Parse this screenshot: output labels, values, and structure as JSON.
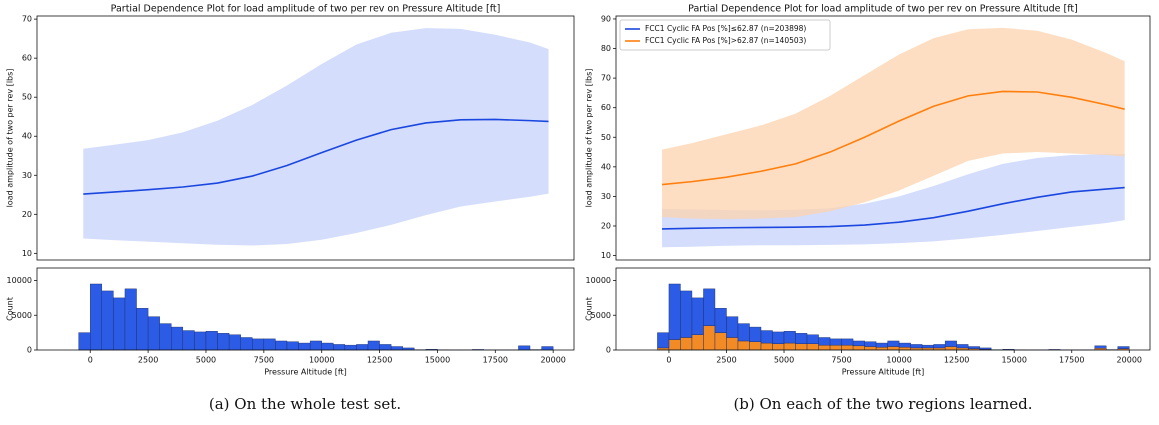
{
  "chart_data": [
    {
      "type": "line",
      "title": "Partial Dependence Plot for load amplitude of two per rev on Pressure Altitude [ft]",
      "ylabel": "load amplitude of two per rev [lbs]",
      "x": [
        -300,
        1000,
        2500,
        4000,
        5500,
        7000,
        8500,
        10000,
        11500,
        13000,
        14500,
        16000,
        17500,
        19000,
        19800
      ],
      "series": [
        {
          "color": "#1a47e0",
          "band_color": "#c6d2fa",
          "values": [
            25.2,
            25.7,
            26.3,
            27.0,
            28.0,
            29.8,
            32.5,
            35.8,
            39.0,
            41.7,
            43.4,
            44.2,
            44.3,
            44.0,
            43.8
          ],
          "upper": [
            36.8,
            37.8,
            39.0,
            41.0,
            44.0,
            48.0,
            53.0,
            58.5,
            63.5,
            66.5,
            67.7,
            67.5,
            66.0,
            64.0,
            62.3
          ],
          "lower": [
            13.8,
            13.4,
            13.0,
            12.6,
            12.2,
            12.0,
            12.4,
            13.5,
            15.2,
            17.3,
            19.8,
            22.0,
            23.3,
            24.5,
            25.3
          ]
        }
      ],
      "xlim": [
        -2300,
        20900
      ],
      "ylim": [
        8.3,
        70.8
      ],
      "yticks": [
        10,
        20,
        30,
        40,
        50,
        60,
        70
      ]
    },
    {
      "type": "histogram",
      "ylabel": "Count",
      "xlabel": "Pressure Altitude [ft]",
      "bins": [
        -500,
        0,
        500,
        1000,
        1500,
        2000,
        2500,
        3000,
        3500,
        4000,
        4500,
        5000,
        5500,
        6000,
        6500,
        7000,
        7500,
        8000,
        8500,
        9000,
        9500,
        10000,
        10500,
        11000,
        11500,
        12000,
        12500,
        13000,
        13500,
        14000,
        14500,
        15000,
        15500,
        16000,
        16500,
        17000,
        17500,
        18000,
        18500,
        19000,
        19500,
        20000
      ],
      "series": [
        {
          "color": "#2c5ce6",
          "values": [
            2500,
            9500,
            8500,
            7500,
            8800,
            6000,
            4800,
            3800,
            3300,
            2800,
            2600,
            2700,
            2400,
            2200,
            1800,
            1600,
            1600,
            1300,
            1200,
            1000,
            1300,
            1000,
            800,
            700,
            800,
            1300,
            800,
            500,
            300,
            50,
            100,
            30,
            20,
            20,
            80,
            20,
            20,
            20,
            600,
            60,
            500
          ]
        }
      ],
      "xlim": [
        -2300,
        20900
      ],
      "ylim": [
        0,
        11800
      ],
      "yticks": [
        0,
        5000,
        10000
      ],
      "xticks": [
        0,
        2500,
        5000,
        7500,
        10000,
        12500,
        15000,
        17500,
        20000
      ]
    },
    {
      "type": "line",
      "title": "Partial Dependence Plot for load amplitude of two per rev on Pressure Altitude [ft]",
      "ylabel": "load amplitude of two per rev [lbs]",
      "legend": "upper left",
      "x": [
        -300,
        1000,
        2500,
        4000,
        5500,
        7000,
        8500,
        10000,
        11500,
        13000,
        14500,
        16000,
        17500,
        19000,
        19800
      ],
      "series": [
        {
          "name": "FCC1 Cyclic FA Pos [%]≤62.87 (n=203898)",
          "color": "#1a47e0",
          "band_color": "#c6d2fa",
          "values": [
            19.0,
            19.2,
            19.4,
            19.5,
            19.6,
            19.8,
            20.3,
            21.3,
            22.8,
            25.0,
            27.5,
            29.7,
            31.5,
            32.5,
            33.0
          ],
          "upper": [
            25.8,
            25.6,
            25.4,
            25.3,
            25.5,
            26.0,
            27.5,
            30.0,
            33.5,
            37.5,
            41.0,
            43.0,
            44.0,
            44.3,
            44.3
          ],
          "lower": [
            12.8,
            13.0,
            13.3,
            13.5,
            13.5,
            13.6,
            13.8,
            14.2,
            14.8,
            15.8,
            17.0,
            18.3,
            19.7,
            21.0,
            22.0
          ]
        },
        {
          "name": "FCC1 Cyclic FA Pos [%]>62.87 (n=140503)",
          "color": "#ff7f0e",
          "band_color": "#fdd3ad",
          "values": [
            34.0,
            35.0,
            36.5,
            38.5,
            41.0,
            45.0,
            50.0,
            55.5,
            60.5,
            64.0,
            65.5,
            65.3,
            63.5,
            61.0,
            59.5
          ],
          "upper": [
            45.8,
            48.0,
            51.0,
            54.0,
            58.0,
            64.0,
            71.0,
            78.0,
            83.5,
            86.5,
            87.0,
            86.0,
            83.0,
            78.5,
            75.7
          ],
          "lower": [
            23.0,
            22.5,
            22.3,
            22.5,
            23.0,
            25.0,
            28.0,
            32.0,
            37.0,
            42.0,
            44.5,
            45.0,
            44.5,
            44.0,
            43.5
          ]
        }
      ],
      "xlim": [
        -2300,
        20900
      ],
      "ylim": [
        8.5,
        91
      ],
      "yticks": [
        10,
        20,
        30,
        40,
        50,
        60,
        70,
        80,
        90
      ]
    },
    {
      "type": "histogram",
      "stacked": true,
      "ylabel": "Count",
      "xlabel": "Pressure Altitude [ft]",
      "bins": [
        -500,
        0,
        500,
        1000,
        1500,
        2000,
        2500,
        3000,
        3500,
        4000,
        4500,
        5000,
        5500,
        6000,
        6500,
        7000,
        7500,
        8000,
        8500,
        9000,
        9500,
        10000,
        10500,
        11000,
        11500,
        12000,
        12500,
        13000,
        13500,
        14000,
        14500,
        15000,
        15500,
        16000,
        16500,
        17000,
        17500,
        18000,
        18500,
        19000,
        19500,
        20000
      ],
      "series": [
        {
          "color": "#f28a25",
          "values": [
            300,
            1500,
            1800,
            2200,
            3500,
            2500,
            1800,
            1300,
            1200,
            1000,
            900,
            1000,
            900,
            900,
            700,
            700,
            700,
            600,
            500,
            400,
            500,
            400,
            300,
            300,
            300,
            500,
            300,
            200,
            100,
            20,
            40,
            10,
            10,
            10,
            30,
            10,
            10,
            10,
            250,
            20,
            200
          ]
        },
        {
          "color": "#2c5ce6",
          "values": [
            2200,
            8000,
            6700,
            5300,
            5300,
            3500,
            3000,
            2500,
            2100,
            1800,
            1700,
            1700,
            1500,
            1300,
            1100,
            900,
            900,
            700,
            700,
            600,
            800,
            600,
            500,
            400,
            500,
            800,
            500,
            300,
            200,
            30,
            60,
            20,
            10,
            10,
            50,
            10,
            10,
            10,
            350,
            40,
            300
          ]
        }
      ],
      "xlim": [
        -2300,
        20900
      ],
      "ylim": [
        0,
        11800
      ],
      "yticks": [
        0,
        5000,
        10000
      ],
      "xticks": [
        0,
        2500,
        5000,
        7500,
        10000,
        12500,
        15000,
        17500,
        20000
      ]
    }
  ],
  "captions": [
    "(a) On the whole test set.",
    "(b) On each of the two regions learned."
  ]
}
